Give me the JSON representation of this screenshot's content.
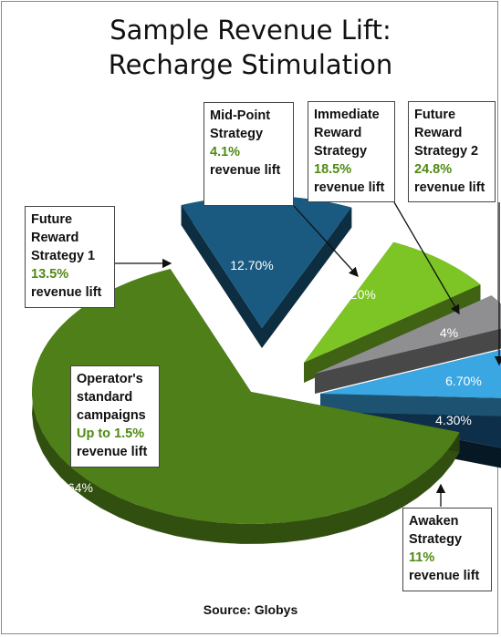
{
  "title_line1": "Sample Revenue Lift:",
  "title_line2": "Recharge Stimulation",
  "source": "Source: Globys",
  "chart_data": {
    "type": "pie",
    "title": "Sample Revenue Lift: Recharge Stimulation",
    "slices": [
      {
        "value": 12.7,
        "label": "12.70%",
        "color": "#1a5a80"
      },
      {
        "value": 8.2,
        "label": "8.20%",
        "color": "#7dc425"
      },
      {
        "value": 4.0,
        "label": "4%",
        "color": "#8f8f92"
      },
      {
        "value": 6.7,
        "label": "6.70%",
        "color": "#3aa6e2"
      },
      {
        "value": 4.3,
        "label": "4.30%",
        "color": "#0e2f4a"
      },
      {
        "value": 64.0,
        "label": "64%",
        "color": "#4f7f18"
      }
    ]
  },
  "callouts": {
    "future1": {
      "lines": [
        "Future",
        "Reward",
        "Strategy  1"
      ],
      "value": "13.5%",
      "suffix": "revenue lift"
    },
    "midpoint": {
      "lines": [
        "Mid-Point",
        "Strategy"
      ],
      "value": "4.1%",
      "suffix": "revenue lift"
    },
    "immediate": {
      "lines": [
        "Immediate",
        "Reward",
        "Strategy"
      ],
      "value": "18.5%",
      "suffix": "revenue lift"
    },
    "future2": {
      "lines": [
        "Future",
        "Reward",
        "Strategy 2"
      ],
      "value": "24.8%",
      "suffix": "revenue lift"
    },
    "operator": {
      "lines": [
        "Operator's",
        "standard",
        "campaigns"
      ],
      "value": "Up to 1.5%",
      "suffix": "revenue lift"
    },
    "awaken": {
      "lines": [
        "Awaken",
        "Strategy"
      ],
      "value": "11%",
      "suffix": "revenue lift"
    }
  }
}
